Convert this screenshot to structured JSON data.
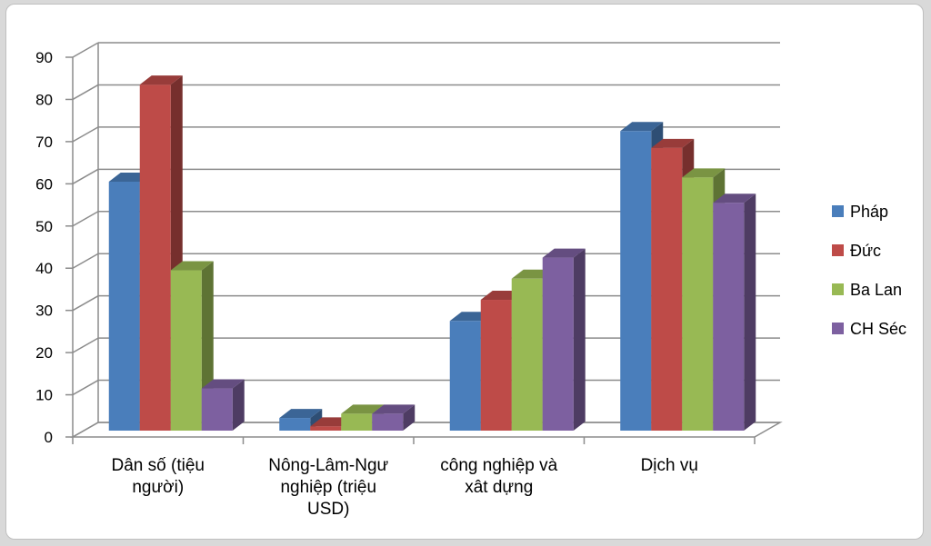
{
  "chart_data": {
    "type": "bar",
    "title": "",
    "xlabel": "",
    "ylabel": "",
    "ylim": [
      0,
      90
    ],
    "yticks": [
      0,
      10,
      20,
      30,
      40,
      50,
      60,
      70,
      80,
      90
    ],
    "grid": true,
    "three_d": true,
    "legend_position": "right",
    "categories": [
      [
        "Dân số (tiệu",
        "người)"
      ],
      [
        "Nông-Lâm-Ngư",
        "nghiệp (triệu",
        "USD)"
      ],
      [
        "công nghiệp và",
        "xât dựng"
      ],
      [
        "Dịch vụ"
      ]
    ],
    "series": [
      {
        "name": "Pháp",
        "color": "#4a7ebb",
        "values": [
          59,
          3,
          26,
          71
        ]
      },
      {
        "name": "Đức",
        "color": "#be4b48",
        "values": [
          82,
          1,
          31,
          67
        ]
      },
      {
        "name": "Ba Lan",
        "color": "#98b954",
        "values": [
          38,
          4,
          36,
          60
        ]
      },
      {
        "name": "CH Séc",
        "color": "#7d60a0",
        "values": [
          10,
          4,
          41,
          54
        ]
      }
    ]
  }
}
